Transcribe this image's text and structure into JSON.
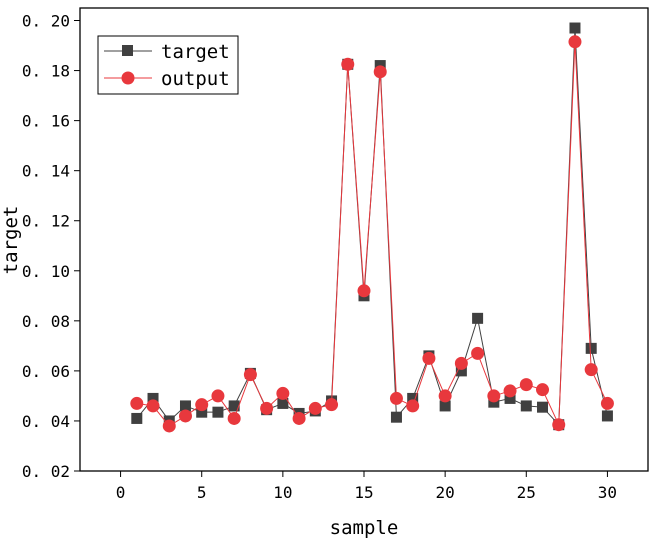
{
  "chart_data": {
    "type": "line",
    "xlabel": "sample",
    "ylabel": "target",
    "xlim": [
      -2.5,
      32.5
    ],
    "ylim": [
      0.02,
      0.205
    ],
    "x_ticks": [
      0,
      5,
      10,
      15,
      20,
      25,
      30
    ],
    "y_ticks": [
      0.02,
      0.04,
      0.06,
      0.08,
      0.1,
      0.12,
      0.14,
      0.16,
      0.18,
      0.2
    ],
    "grid": false,
    "legend_position": "top-left",
    "x": [
      1,
      2,
      3,
      4,
      5,
      6,
      7,
      8,
      9,
      10,
      11,
      12,
      13,
      14,
      15,
      16,
      17,
      18,
      19,
      20,
      21,
      22,
      23,
      24,
      25,
      26,
      27,
      28,
      29,
      30
    ],
    "series": [
      {
        "name": "target",
        "marker": "square",
        "color": "#404040",
        "values": [
          0.041,
          0.049,
          0.04,
          0.046,
          0.0435,
          0.0435,
          0.046,
          0.059,
          0.0445,
          0.047,
          0.043,
          0.044,
          0.048,
          0.1825,
          0.09,
          0.182,
          0.0415,
          0.049,
          0.066,
          0.046,
          0.06,
          0.081,
          0.0475,
          0.049,
          0.046,
          0.0455,
          0.0385,
          0.197,
          0.069,
          0.042
        ]
      },
      {
        "name": "output",
        "marker": "circle",
        "color": "#e8383d",
        "values": [
          0.047,
          0.046,
          0.038,
          0.042,
          0.0465,
          0.05,
          0.041,
          0.0585,
          0.045,
          0.051,
          0.041,
          0.045,
          0.0465,
          0.1825,
          0.092,
          0.1795,
          0.049,
          0.046,
          0.065,
          0.05,
          0.063,
          0.067,
          0.05,
          0.052,
          0.0545,
          0.0525,
          0.0385,
          0.1915,
          0.0605,
          0.047
        ]
      }
    ]
  }
}
